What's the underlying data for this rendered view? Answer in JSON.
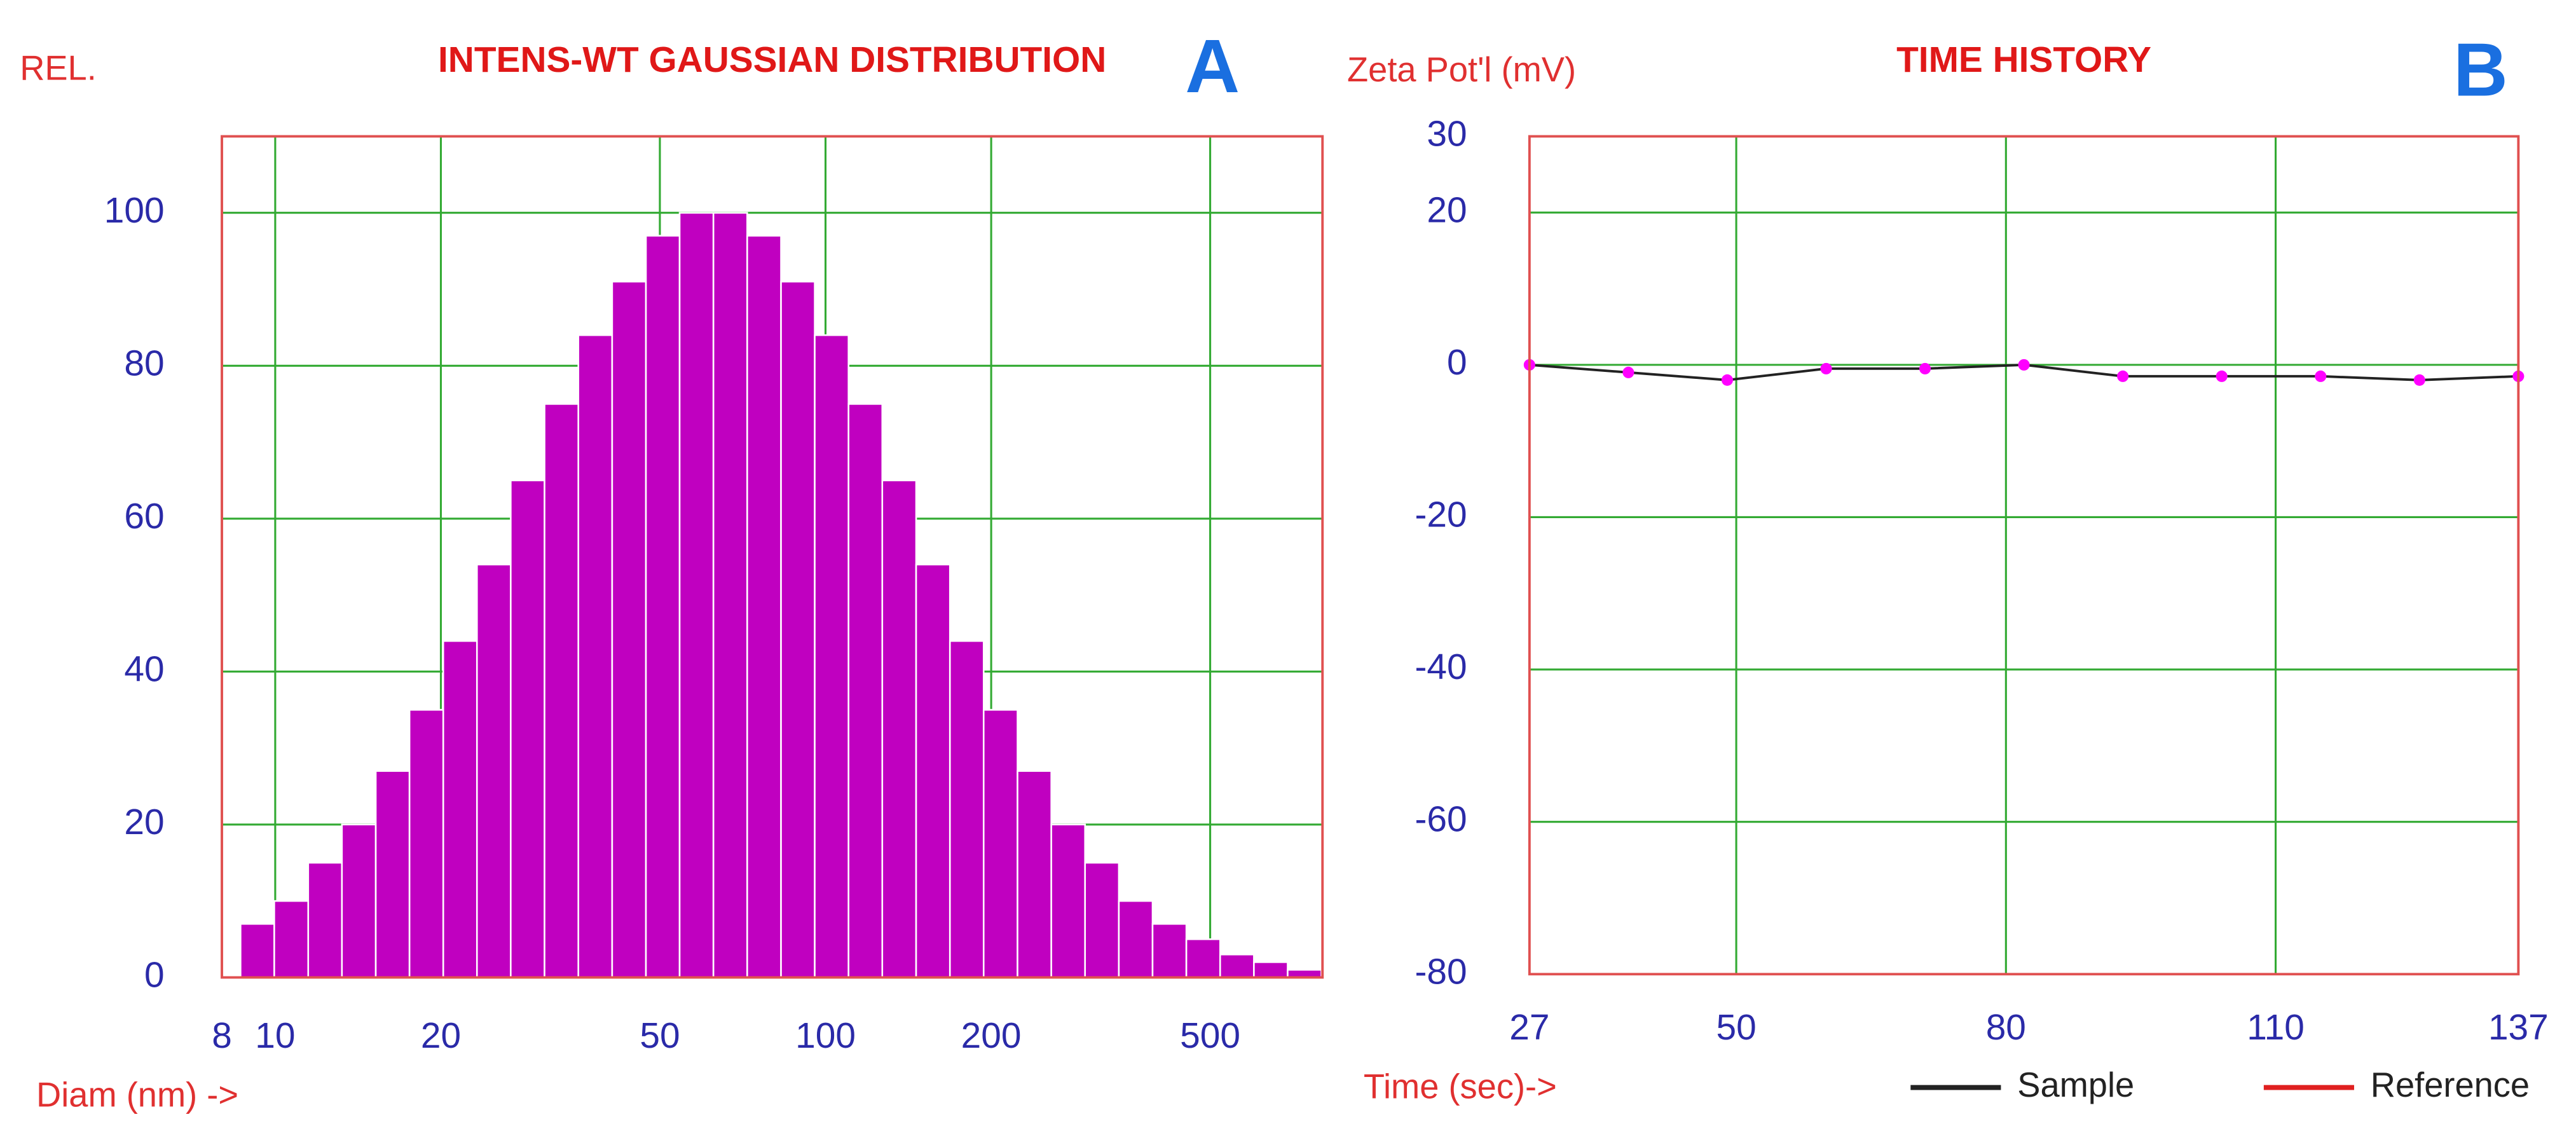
{
  "chart_data": [
    {
      "type": "histogram",
      "title": "INTENS-WT GAUSSIAN DISTRIBUTION",
      "annotation": "A",
      "y_label": "REL.",
      "x_label": "Diam (nm) ->",
      "xscale": "log",
      "bins": [
        8.65,
        9.96,
        11.48,
        13.22,
        15.23,
        17.54,
        20.2,
        23.26,
        26.79,
        30.86,
        35.55,
        40.95,
        47.17,
        54.31,
        62.56,
        72.06,
        83.01,
        95.59,
        110.1,
        126.8,
        146.1,
        168.3,
        193.8,
        223.3,
        257.2,
        296.2,
        341.2,
        392.9,
        452.6,
        521.3,
        600.4,
        691.5,
        796.4
      ],
      "values": [
        7,
        10,
        15,
        20,
        27,
        35,
        44,
        54,
        65,
        75,
        84,
        91,
        97,
        100,
        100,
        97,
        91,
        84,
        75,
        65,
        54,
        44,
        35,
        27,
        20,
        15,
        10,
        7,
        5,
        3,
        2,
        1
      ],
      "color": "#c000c0",
      "xlim": [
        8,
        800
      ],
      "xticks": [
        8,
        10,
        20,
        50,
        100,
        200,
        500
      ],
      "ylim": [
        0,
        110
      ],
      "yticks": [
        0,
        20,
        40,
        60,
        80,
        100
      ],
      "grid": true
    },
    {
      "type": "line",
      "title": "TIME HISTORY",
      "annotation": "B",
      "y_label": "Zeta Pot'l (mV)",
      "x_label": "Time (sec)->",
      "x": [
        27,
        38,
        49,
        60,
        71,
        82,
        93,
        104,
        115,
        126,
        137
      ],
      "series": [
        {
          "name": "Sample",
          "color": "#222222",
          "marker_color": "#ff00ff",
          "values": [
            0,
            -1,
            -2,
            -0.5,
            -0.5,
            0,
            -1.5,
            -1.5,
            -1.5,
            -2,
            -1.5
          ]
        },
        {
          "name": "Reference",
          "color": "#e02020",
          "values": [
            null,
            null,
            null,
            null,
            null,
            null,
            null,
            null,
            null,
            null,
            null
          ]
        }
      ],
      "xlim": [
        27,
        137
      ],
      "xticks": [
        27,
        50,
        80,
        110,
        137
      ],
      "ylim": [
        -80,
        30
      ],
      "yticks": [
        -80,
        -60,
        -40,
        -20,
        0,
        20,
        30
      ],
      "grid": true,
      "legend": "bottom"
    }
  ]
}
